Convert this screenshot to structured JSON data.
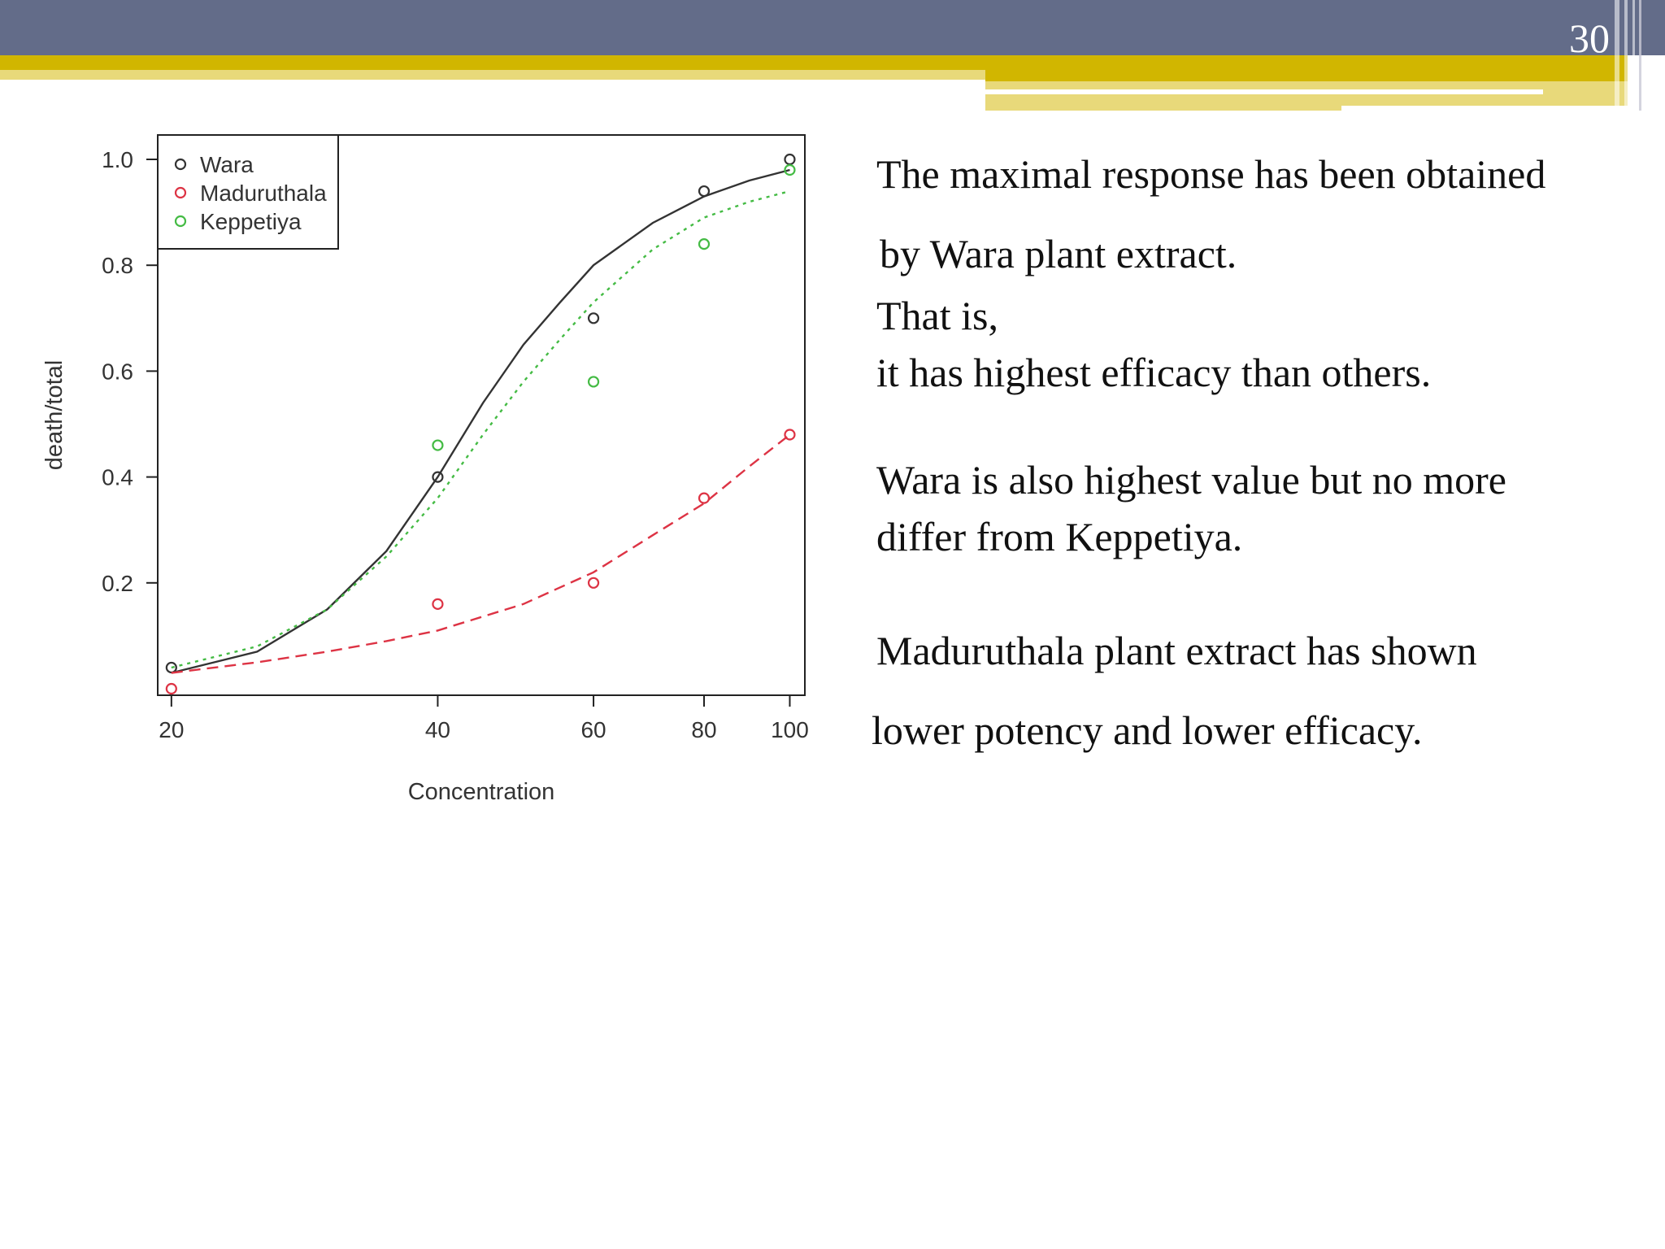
{
  "slide": {
    "number": "30",
    "colors": {
      "header_bar": "#636C89",
      "accent_yellow": "#D1B600",
      "accent_light": "#E8D97A"
    }
  },
  "text": {
    "line1": "The maximal response has been obtained",
    "line2": "by Wara plant extract.",
    "line3": "That is,",
    "line4": "it has highest efficacy than others.",
    "line5": "Wara is also highest value but no more",
    "line6": "differ from Keppetiya.",
    "line7": "Maduruthala plant extract has shown",
    "line8": "lower potency and lower efficacy."
  },
  "chart_data": {
    "type": "scatter",
    "title": "",
    "xlabel": "Concentration",
    "ylabel": "death/total",
    "x_scale": "log",
    "xlim": [
      19.3,
      104
    ],
    "ylim": [
      0,
      1.0
    ],
    "x_ticks": [
      "20",
      "40",
      "60",
      "80",
      "100"
    ],
    "y_ticks": [
      "0.2",
      "0.4",
      "0.6",
      "0.8",
      "1.0"
    ],
    "legend_position": "top-left",
    "grid": false,
    "series": [
      {
        "name": "Wara",
        "color": "#333333",
        "line_style": "solid",
        "points": [
          [
            20,
            0.04
          ],
          [
            40,
            0.4
          ],
          [
            60,
            0.7
          ],
          [
            80,
            0.94
          ],
          [
            100,
            1.0
          ]
        ],
        "fit": [
          [
            20,
            0.03
          ],
          [
            25,
            0.07
          ],
          [
            30,
            0.15
          ],
          [
            35,
            0.26
          ],
          [
            40,
            0.4
          ],
          [
            45,
            0.54
          ],
          [
            50,
            0.65
          ],
          [
            55,
            0.73
          ],
          [
            60,
            0.8
          ],
          [
            70,
            0.88
          ],
          [
            80,
            0.93
          ],
          [
            90,
            0.96
          ],
          [
            100,
            0.98
          ]
        ]
      },
      {
        "name": "Maduruthala",
        "color": "#DD3344",
        "line_style": "dashed",
        "points": [
          [
            20,
            0.0
          ],
          [
            40,
            0.16
          ],
          [
            60,
            0.2
          ],
          [
            80,
            0.36
          ],
          [
            100,
            0.48
          ]
        ],
        "fit": [
          [
            20,
            0.03
          ],
          [
            25,
            0.05
          ],
          [
            30,
            0.07
          ],
          [
            35,
            0.09
          ],
          [
            40,
            0.11
          ],
          [
            50,
            0.16
          ],
          [
            60,
            0.22
          ],
          [
            70,
            0.29
          ],
          [
            80,
            0.35
          ],
          [
            90,
            0.42
          ],
          [
            100,
            0.48
          ]
        ]
      },
      {
        "name": "Keppetiya",
        "color": "#44BB44",
        "line_style": "dotted",
        "points": [
          [
            40,
            0.46
          ],
          [
            60,
            0.58
          ],
          [
            80,
            0.84
          ],
          [
            100,
            0.98
          ]
        ],
        "fit": [
          [
            20,
            0.04
          ],
          [
            25,
            0.08
          ],
          [
            30,
            0.15
          ],
          [
            35,
            0.25
          ],
          [
            40,
            0.36
          ],
          [
            45,
            0.48
          ],
          [
            50,
            0.58
          ],
          [
            55,
            0.66
          ],
          [
            60,
            0.73
          ],
          [
            70,
            0.83
          ],
          [
            80,
            0.89
          ],
          [
            90,
            0.92
          ],
          [
            100,
            0.94
          ]
        ]
      }
    ]
  }
}
